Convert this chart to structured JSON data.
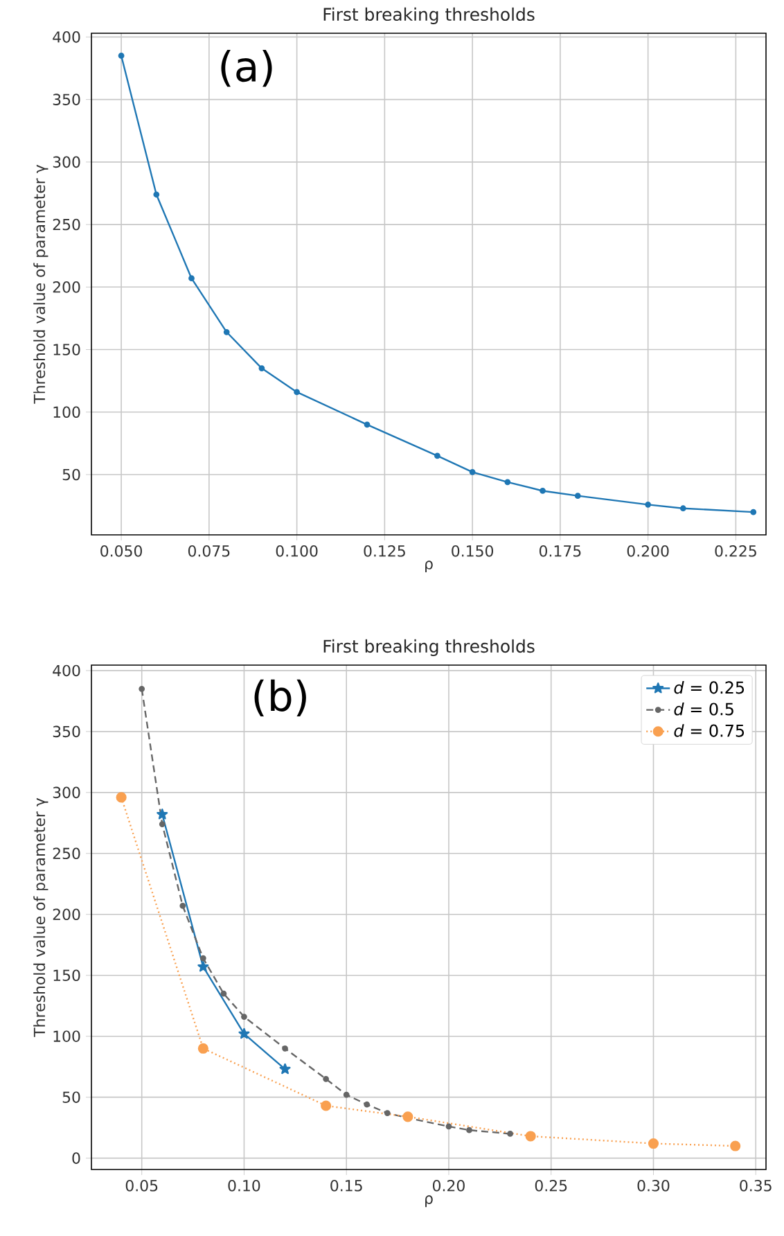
{
  "chart_data": [
    {
      "type": "line",
      "title": "First breaking thresholds",
      "xlabel": "ρ",
      "ylabel": "Threshold value of parameter γ",
      "annotations": [
        "(a)"
      ],
      "x": [
        0.05,
        0.06,
        0.07,
        0.08,
        0.09,
        0.1,
        0.12,
        0.14,
        0.15,
        0.16,
        0.17,
        0.18,
        0.2,
        0.21,
        0.23
      ],
      "values": [
        385,
        274,
        207,
        164,
        135,
        116,
        90,
        65,
        52,
        44,
        37,
        33,
        26,
        23,
        20
      ],
      "color": "#1f77b4",
      "marker": "circle",
      "line_style": "solid",
      "grid": true,
      "xlim": [
        0.0415,
        0.2336
      ],
      "ylim": [
        1.8,
        403
      ],
      "xticks": [
        {
          "value": 0.05,
          "label": "0.050"
        },
        {
          "value": 0.075,
          "label": "0.075"
        },
        {
          "value": 0.1,
          "label": "0.100"
        },
        {
          "value": 0.125,
          "label": "0.125"
        },
        {
          "value": 0.15,
          "label": "0.150"
        },
        {
          "value": 0.175,
          "label": "0.175"
        },
        {
          "value": 0.2,
          "label": "0.200"
        },
        {
          "value": 0.225,
          "label": "0.225"
        }
      ],
      "yticks": [
        50,
        100,
        150,
        200,
        250,
        300,
        350,
        400
      ]
    },
    {
      "type": "line",
      "title": "First breaking thresholds",
      "xlabel": "ρ",
      "ylabel": "Threshold value of parameter γ",
      "annotations": [
        "(b)"
      ],
      "series": [
        {
          "name": "*d* = 0.25",
          "color": "#1f77b4",
          "marker": "star",
          "line_style": "solid",
          "x": [
            0.06,
            0.08,
            0.1,
            0.12
          ],
          "values": [
            282,
            157,
            102,
            73
          ]
        },
        {
          "name": "*d* = 0.5",
          "color": "#666666",
          "marker": "circle",
          "line_style": "dashed",
          "x": [
            0.05,
            0.06,
            0.07,
            0.08,
            0.09,
            0.1,
            0.12,
            0.14,
            0.15,
            0.16,
            0.17,
            0.18,
            0.2,
            0.21,
            0.23
          ],
          "values": [
            385,
            274,
            207,
            164,
            135,
            116,
            90,
            65,
            52,
            44,
            37,
            33,
            26,
            23,
            20
          ]
        },
        {
          "name": "*d* = 0.75",
          "color": "#f9a050",
          "marker": "circle",
          "line_style": "dotted",
          "x": [
            0.04,
            0.08,
            0.14,
            0.18,
            0.24,
            0.3,
            0.34
          ],
          "values": [
            296,
            90,
            43,
            34,
            18,
            12,
            10
          ]
        }
      ],
      "grid": true,
      "legend": "top right",
      "xlim": [
        0.0254,
        0.355
      ],
      "ylim": [
        -9.3,
        404.5
      ],
      "xticks": [
        0.05,
        {
          "value": 0.1,
          "label": "0.10"
        },
        0.15,
        {
          "value": 0.2,
          "label": "0.20"
        },
        0.25,
        {
          "value": 0.3,
          "label": "0.30"
        },
        0.35
      ],
      "yticks": [
        0,
        50,
        100,
        150,
        200,
        250,
        300,
        350,
        400
      ]
    }
  ]
}
